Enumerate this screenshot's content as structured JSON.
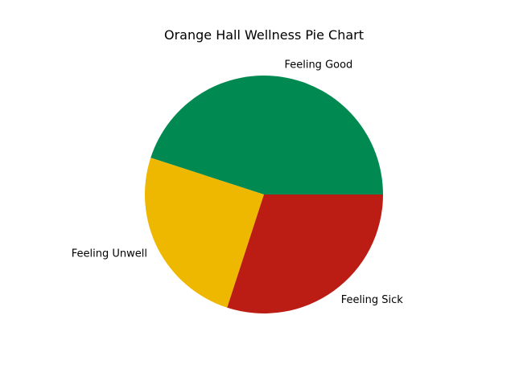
{
  "chart_data": {
    "type": "pie",
    "title": "Orange Hall Wellness Pie Chart",
    "slices": [
      {
        "label": "Feeling Good",
        "value": 45,
        "color": "#008a51"
      },
      {
        "label": "Feeling Unwell",
        "value": 25,
        "color": "#efb800"
      },
      {
        "label": "Feeling Sick",
        "value": 30,
        "color": "#bb1d14"
      }
    ],
    "start_angle_deg": 0,
    "direction": "counterclockwise",
    "legend": "none"
  }
}
